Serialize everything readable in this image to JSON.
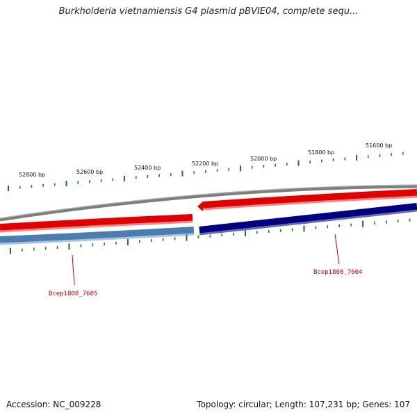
{
  "title": "Burkholderia vietnamiensis G4 plasmid pBVIE04, complete sequ...",
  "footer": {
    "accession": "Accession: NC_009228",
    "summary": "Topology: circular; Length: 107,231 bp; Genes: 107"
  },
  "scale": {
    "tick_labels": [
      "52800 bp",
      "52600 bp",
      "52400 bp",
      "52200 bp",
      "52000 bp",
      "51800 bp",
      "51600 bp"
    ]
  },
  "genes": [
    {
      "name": "Bcep1808_7605",
      "strand": "reverse"
    },
    {
      "name": "Bcep1808_7604",
      "strand": "reverse"
    }
  ],
  "colors": {
    "backbone": "#808080",
    "forward_cds": "#e00000",
    "gene_7605": "#4a7db0",
    "gene_7604": "#000080",
    "ticks": "#1a7a1a",
    "gene_label": "#c00000"
  }
}
